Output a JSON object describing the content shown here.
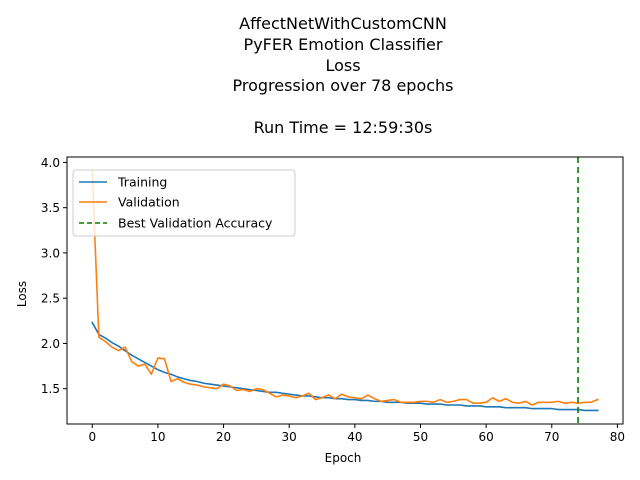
{
  "chart_data": {
    "type": "line",
    "title_lines": [
      "AffectNetWithCustomCNN",
      "PyFER Emotion Classifier",
      "Loss",
      "Progression over 78 epochs",
      "",
      "Run Time = 12:59:30s"
    ],
    "xlabel": "Epoch",
    "ylabel": "Loss",
    "xlim": [
      -3.85,
      80.85
    ],
    "ylim": [
      1.11,
      4.06
    ],
    "xticks": [
      0,
      10,
      20,
      30,
      40,
      50,
      60,
      70,
      80
    ],
    "yticks": [
      1.5,
      2.0,
      2.5,
      3.0,
      3.5,
      4.0
    ],
    "xtick_labels": [
      "0",
      "10",
      "20",
      "30",
      "40",
      "50",
      "60",
      "70",
      "80"
    ],
    "ytick_labels": [
      "1.5",
      "2.0",
      "2.5",
      "3.0",
      "3.5",
      "4.0"
    ],
    "legend_position": "top-left",
    "series": [
      {
        "name": "Training",
        "color": "#1f77b4",
        "x": [
          0,
          1,
          2,
          3,
          4,
          5,
          6,
          7,
          8,
          9,
          10,
          11,
          12,
          13,
          14,
          15,
          16,
          17,
          18,
          19,
          20,
          21,
          22,
          23,
          24,
          25,
          26,
          27,
          28,
          29,
          30,
          31,
          32,
          33,
          34,
          35,
          36,
          37,
          38,
          39,
          40,
          41,
          42,
          43,
          44,
          45,
          46,
          47,
          48,
          49,
          50,
          51,
          52,
          53,
          54,
          55,
          56,
          57,
          58,
          59,
          60,
          61,
          62,
          63,
          64,
          65,
          66,
          67,
          68,
          69,
          70,
          71,
          72,
          73,
          74,
          75,
          76,
          77
        ],
        "values": [
          2.23,
          2.1,
          2.06,
          2.01,
          1.97,
          1.92,
          1.87,
          1.83,
          1.79,
          1.75,
          1.71,
          1.68,
          1.66,
          1.63,
          1.61,
          1.59,
          1.58,
          1.56,
          1.55,
          1.54,
          1.53,
          1.52,
          1.51,
          1.5,
          1.49,
          1.48,
          1.47,
          1.46,
          1.46,
          1.45,
          1.44,
          1.43,
          1.42,
          1.42,
          1.41,
          1.4,
          1.4,
          1.39,
          1.39,
          1.38,
          1.38,
          1.37,
          1.37,
          1.36,
          1.36,
          1.35,
          1.35,
          1.35,
          1.34,
          1.34,
          1.34,
          1.33,
          1.33,
          1.33,
          1.32,
          1.32,
          1.32,
          1.31,
          1.31,
          1.31,
          1.3,
          1.3,
          1.3,
          1.29,
          1.29,
          1.29,
          1.29,
          1.28,
          1.28,
          1.28,
          1.28,
          1.27,
          1.27,
          1.27,
          1.27,
          1.26,
          1.26,
          1.26
        ]
      },
      {
        "name": "Validation",
        "color": "#ff7f0e",
        "x": [
          0,
          1,
          2,
          3,
          4,
          5,
          6,
          7,
          8,
          9,
          10,
          11,
          12,
          13,
          14,
          15,
          16,
          17,
          18,
          19,
          20,
          21,
          22,
          23,
          24,
          25,
          26,
          27,
          28,
          29,
          30,
          31,
          32,
          33,
          34,
          35,
          36,
          37,
          38,
          39,
          40,
          41,
          42,
          43,
          44,
          45,
          46,
          47,
          48,
          49,
          50,
          51,
          52,
          53,
          54,
          55,
          56,
          57,
          58,
          59,
          60,
          61,
          62,
          63,
          64,
          65,
          66,
          67,
          68,
          69,
          70,
          71,
          72,
          73,
          74,
          75,
          76,
          77
        ],
        "values": [
          3.9,
          2.07,
          2.02,
          1.96,
          1.92,
          1.96,
          1.8,
          1.75,
          1.77,
          1.66,
          1.84,
          1.83,
          1.58,
          1.61,
          1.57,
          1.55,
          1.54,
          1.52,
          1.51,
          1.5,
          1.55,
          1.53,
          1.48,
          1.49,
          1.47,
          1.5,
          1.49,
          1.45,
          1.41,
          1.43,
          1.42,
          1.4,
          1.42,
          1.45,
          1.38,
          1.4,
          1.43,
          1.39,
          1.44,
          1.41,
          1.4,
          1.39,
          1.43,
          1.39,
          1.36,
          1.37,
          1.38,
          1.35,
          1.35,
          1.35,
          1.36,
          1.36,
          1.35,
          1.38,
          1.35,
          1.36,
          1.38,
          1.38,
          1.34,
          1.34,
          1.35,
          1.4,
          1.36,
          1.39,
          1.35,
          1.34,
          1.36,
          1.32,
          1.35,
          1.35,
          1.35,
          1.36,
          1.34,
          1.35,
          1.34,
          1.35,
          1.35,
          1.38
        ]
      }
    ],
    "best_validation_accuracy": {
      "name": "Best Validation Accuracy",
      "x": 74,
      "color": "#008000",
      "style": "dashed"
    },
    "grid": false
  }
}
